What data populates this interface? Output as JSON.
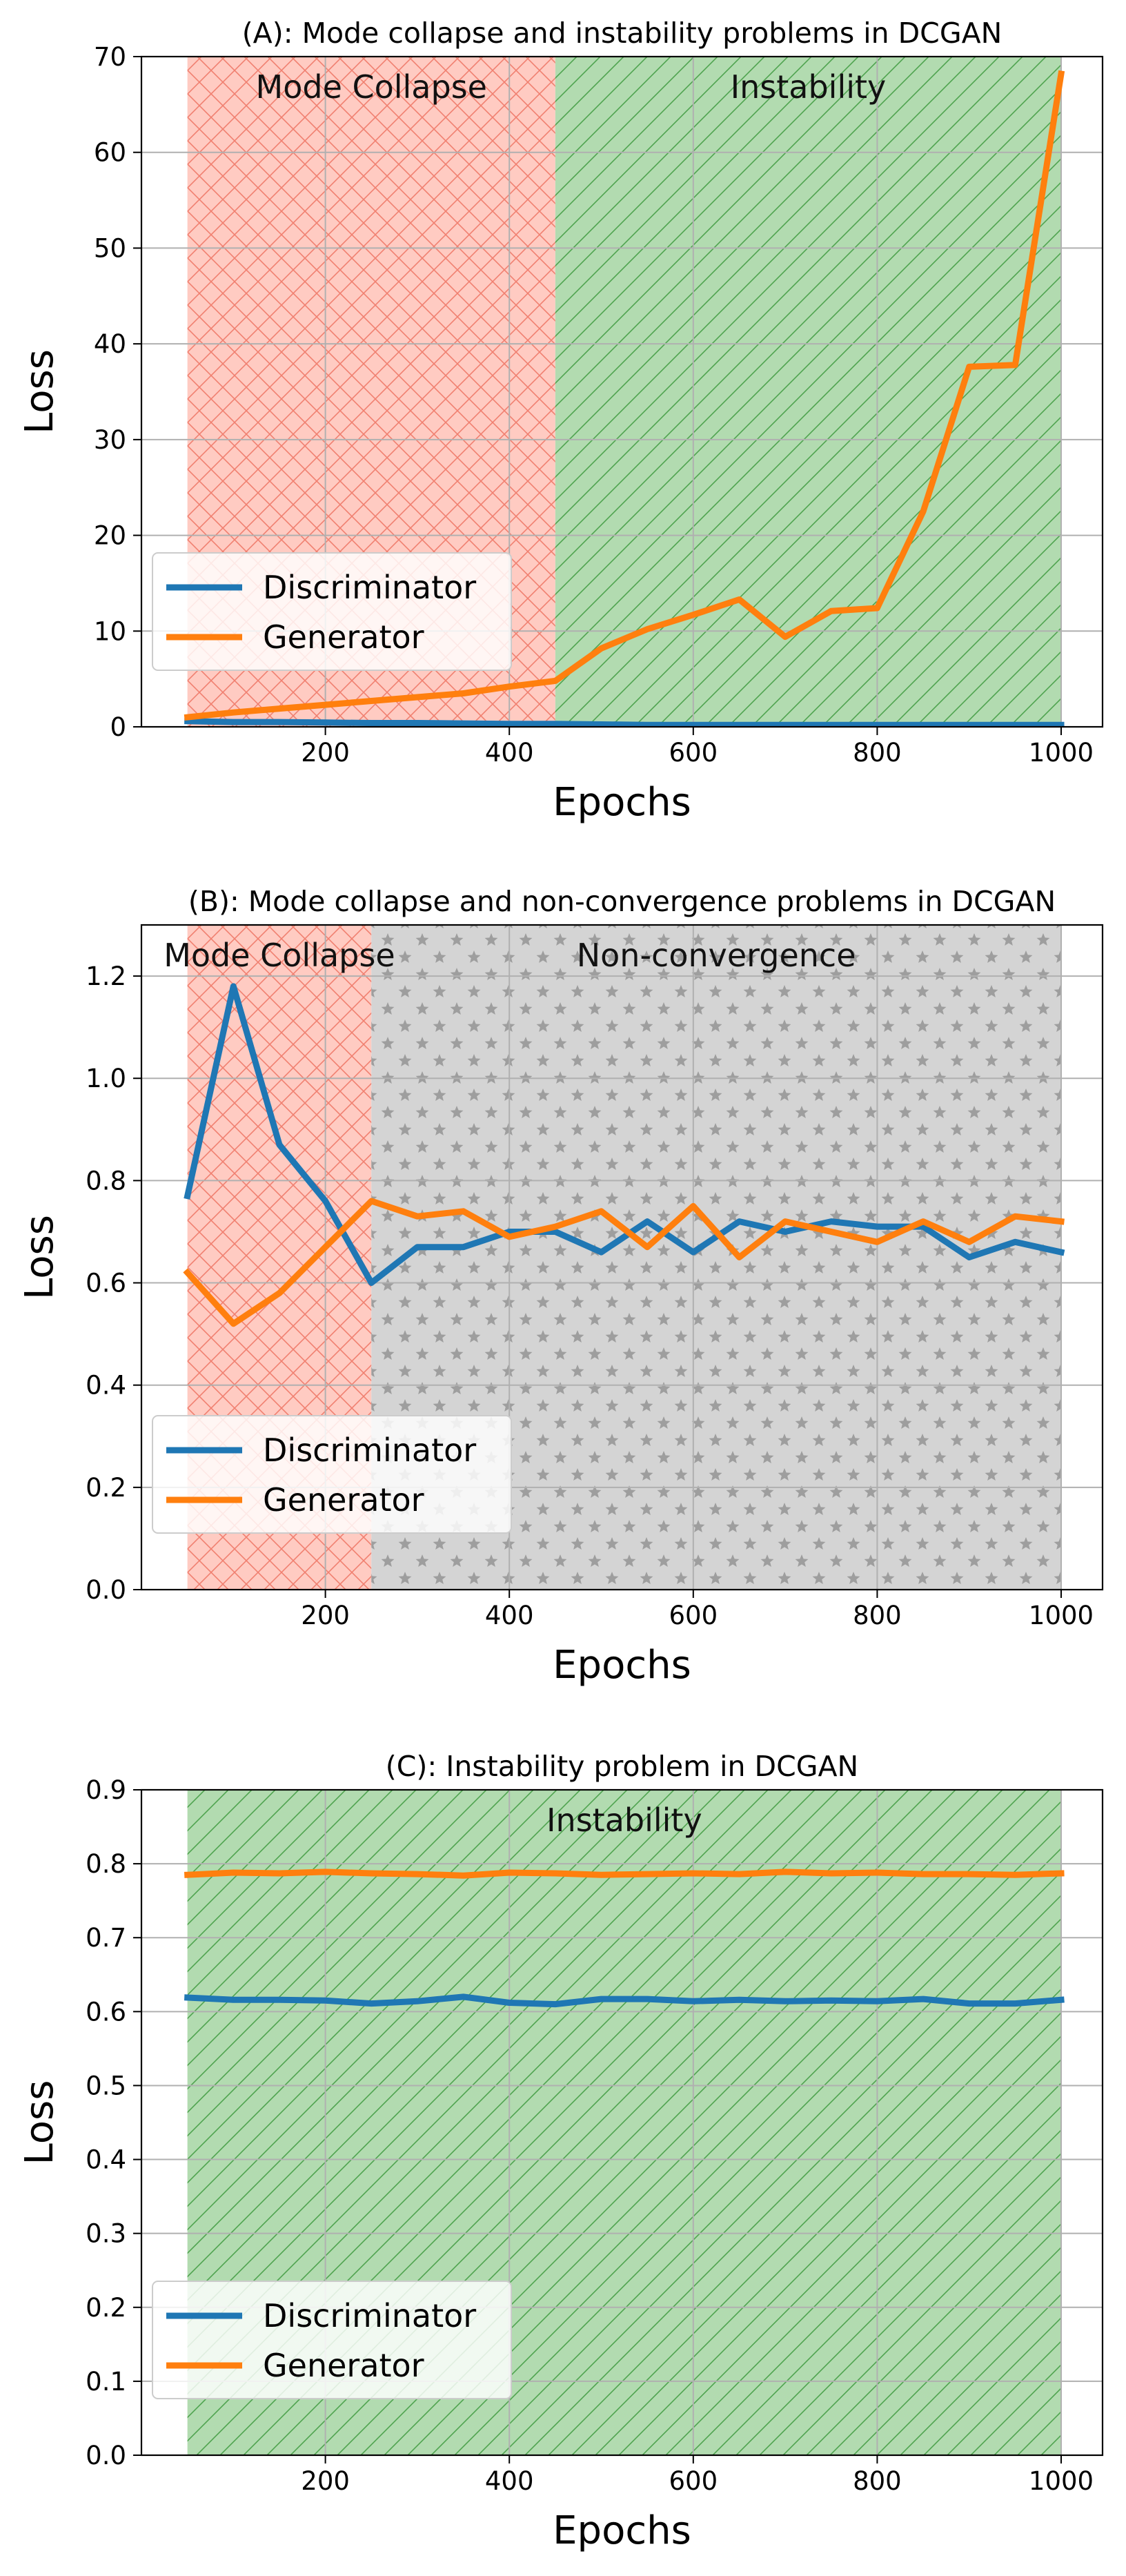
{
  "colors": {
    "discriminator": "#1f77b4",
    "generator": "#ff7f0e",
    "mode_collapse": "#ff9f8f",
    "instability": "#6fbf6f",
    "non_convergence": "#b0b0b0",
    "grid": "#b0b0b0"
  },
  "chart_data": [
    {
      "type": "line",
      "title": "(A): Mode collapse and instability problems in DCGAN",
      "xlabel": "Epochs",
      "ylabel": "Loss",
      "xlim": [
        0,
        1045
      ],
      "ylim": [
        0,
        70
      ],
      "xticks": [
        200,
        400,
        600,
        800,
        1000
      ],
      "yticks": [
        0,
        10,
        20,
        30,
        40,
        50,
        60,
        70
      ],
      "ytick_labels": [
        "0",
        "10",
        "20",
        "30",
        "40",
        "50",
        "60",
        "70"
      ],
      "grid": true,
      "legend_position": "lower-left",
      "regions": [
        {
          "label": "Mode Collapse",
          "x_start": 50,
          "x_end": 450,
          "pattern": "crosshatch",
          "color_key": "mode_collapse"
        },
        {
          "label": "Instability",
          "x_start": 450,
          "x_end": 1000,
          "pattern": "diagonal",
          "color_key": "instability"
        }
      ],
      "x": [
        50,
        100,
        150,
        200,
        250,
        300,
        350,
        400,
        450,
        500,
        550,
        600,
        650,
        700,
        750,
        800,
        850,
        900,
        950,
        1000
      ],
      "series": [
        {
          "name": "Discriminator",
          "color_key": "discriminator",
          "values": [
            0.6,
            0.5,
            0.5,
            0.45,
            0.4,
            0.4,
            0.35,
            0.3,
            0.3,
            0.25,
            0.2,
            0.2,
            0.2,
            0.2,
            0.2,
            0.2,
            0.2,
            0.2,
            0.2,
            0.2
          ]
        },
        {
          "name": "Generator",
          "color_key": "generator",
          "values": [
            1.0,
            1.5,
            1.9,
            2.3,
            2.7,
            3.1,
            3.5,
            4.2,
            4.8,
            8.2,
            10.2,
            11.7,
            13.3,
            9.4,
            12.1,
            12.4,
            22.5,
            37.6,
            37.8,
            68.2
          ]
        }
      ]
    },
    {
      "type": "line",
      "title": "(B): Mode collapse and non-convergence problems in DCGAN",
      "xlabel": "Epochs",
      "ylabel": "Loss",
      "xlim": [
        0,
        1045
      ],
      "ylim": [
        0,
        1.3
      ],
      "xticks": [
        200,
        400,
        600,
        800,
        1000
      ],
      "yticks": [
        0,
        0.2,
        0.4,
        0.6,
        0.8,
        1.0,
        1.2
      ],
      "ytick_labels": [
        "0.0",
        "0.2",
        "0.4",
        "0.6",
        "0.8",
        "1.0",
        "1.2"
      ],
      "grid": true,
      "legend_position": "lower-left",
      "regions": [
        {
          "label": "Mode Collapse",
          "x_start": 50,
          "x_end": 250,
          "pattern": "crosshatch",
          "color_key": "mode_collapse"
        },
        {
          "label": "Non-convergence",
          "x_start": 250,
          "x_end": 1000,
          "pattern": "stars",
          "color_key": "non_convergence"
        }
      ],
      "x": [
        50,
        100,
        150,
        200,
        250,
        300,
        350,
        400,
        450,
        500,
        550,
        600,
        650,
        700,
        750,
        800,
        850,
        900,
        950,
        1000
      ],
      "series": [
        {
          "name": "Discriminator",
          "color_key": "discriminator",
          "values": [
            0.77,
            1.18,
            0.87,
            0.76,
            0.6,
            0.67,
            0.67,
            0.7,
            0.7,
            0.66,
            0.72,
            0.66,
            0.72,
            0.7,
            0.72,
            0.71,
            0.71,
            0.65,
            0.68,
            0.66
          ]
        },
        {
          "name": "Generator",
          "color_key": "generator",
          "values": [
            0.62,
            0.52,
            0.58,
            0.67,
            0.76,
            0.73,
            0.74,
            0.69,
            0.71,
            0.74,
            0.67,
            0.75,
            0.65,
            0.72,
            0.7,
            0.68,
            0.72,
            0.68,
            0.73,
            0.72
          ]
        }
      ]
    },
    {
      "type": "line",
      "title": "(C): Instability problem in DCGAN",
      "xlabel": "Epochs",
      "ylabel": "Loss",
      "xlim": [
        0,
        1045
      ],
      "ylim": [
        0,
        0.9
      ],
      "xticks": [
        200,
        400,
        600,
        800,
        1000
      ],
      "yticks": [
        0,
        0.1,
        0.2,
        0.3,
        0.4,
        0.5,
        0.6,
        0.7,
        0.8,
        0.9
      ],
      "ytick_labels": [
        "0.0",
        "0.1",
        "0.2",
        "0.3",
        "0.4",
        "0.5",
        "0.6",
        "0.7",
        "0.8",
        "0.9"
      ],
      "grid": true,
      "legend_position": "lower-left",
      "regions": [
        {
          "label": "Instability",
          "x_start": 50,
          "x_end": 1000,
          "pattern": "diagonal",
          "color_key": "instability"
        }
      ],
      "x": [
        50,
        100,
        150,
        200,
        250,
        300,
        350,
        400,
        450,
        500,
        550,
        600,
        650,
        700,
        750,
        800,
        850,
        900,
        950,
        1000
      ],
      "series": [
        {
          "name": "Discriminator",
          "color_key": "discriminator",
          "values": [
            0.619,
            0.616,
            0.616,
            0.615,
            0.611,
            0.614,
            0.62,
            0.612,
            0.61,
            0.617,
            0.617,
            0.614,
            0.616,
            0.614,
            0.615,
            0.614,
            0.617,
            0.611,
            0.611,
            0.616
          ]
        },
        {
          "name": "Generator",
          "color_key": "generator",
          "values": [
            0.785,
            0.788,
            0.787,
            0.789,
            0.787,
            0.786,
            0.784,
            0.788,
            0.787,
            0.785,
            0.786,
            0.787,
            0.786,
            0.789,
            0.787,
            0.788,
            0.786,
            0.786,
            0.785,
            0.787
          ]
        }
      ]
    }
  ]
}
